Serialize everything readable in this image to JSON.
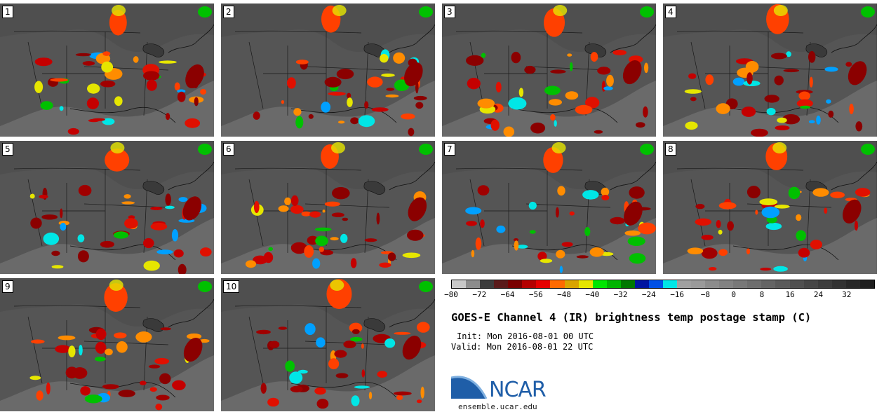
{
  "panels": [
    {
      "label": "1"
    },
    {
      "label": "2"
    },
    {
      "label": "3"
    },
    {
      "label": "4"
    },
    {
      "label": "5"
    },
    {
      "label": "6"
    },
    {
      "label": "7"
    },
    {
      "label": "8"
    },
    {
      "label": "9"
    },
    {
      "label": "10"
    }
  ],
  "colorbar": {
    "colors": [
      "#c8c8c8",
      "#8c8c8c",
      "#3c3c3c",
      "#5a1a1a",
      "#7a0000",
      "#b40000",
      "#e60000",
      "#ff6a00",
      "#d9a400",
      "#e6e600",
      "#00e600",
      "#00b400",
      "#007800",
      "#0014a0",
      "#0050e6",
      "#00e6e6",
      "#a0a0a0",
      "#9a9a9a",
      "#8c8c8c",
      "#828282",
      "#787878",
      "#6e6e6e",
      "#646464",
      "#5a5a5a",
      "#505050",
      "#464646",
      "#3c3c3c",
      "#323232",
      "#282828",
      "#1e1e1e"
    ],
    "ticks": [
      "−80",
      "−72",
      "−64",
      "−56",
      "−48",
      "−40",
      "−32",
      "−24",
      "−16",
      "−8",
      "0",
      "8",
      "16",
      "24",
      "32"
    ]
  },
  "title": "GOES-E Channel 4 (IR) brightness temp postage stamp (C)",
  "init": "Init: Mon 2016-08-01 00 UTC",
  "valid": "Valid: Mon 2016-08-01 22 UTC",
  "logo": {
    "text": "NCAR",
    "site": "ensemble.ucar.edu"
  }
}
